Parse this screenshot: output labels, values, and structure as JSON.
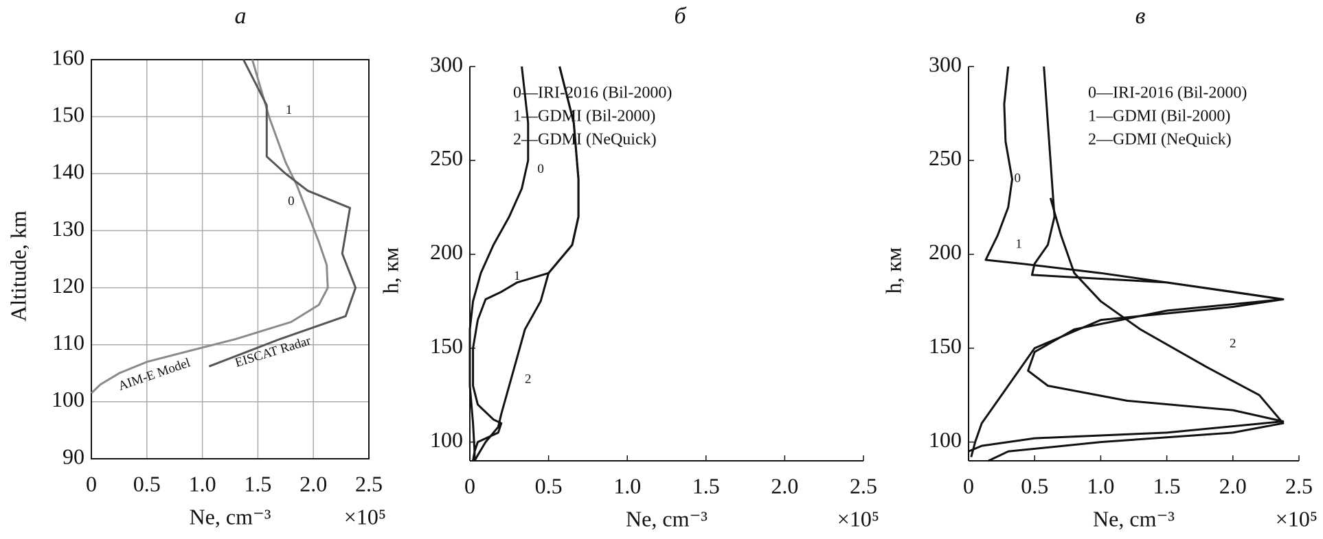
{
  "chart_data": [
    {
      "type": "line",
      "title": "а",
      "xlabel": "Ne, cm⁻³",
      "xunit": "×10⁵",
      "ylabel": "Altitude, km",
      "xlim": [
        0,
        2.5
      ],
      "ylim": [
        90,
        160
      ],
      "xticks": [
        0,
        0.5,
        {
          "value": 1,
          "label": "1.0"
        },
        1.5,
        {
          "value": 2,
          "label": "2.0"
        },
        2.5
      ],
      "yticks": [
        90,
        100,
        110,
        120,
        130,
        140,
        150,
        160
      ],
      "grid": true,
      "box": true,
      "legend": "on-curve",
      "series": [
        {
          "name": "AIM-E Model",
          "color": "#8a8a8a",
          "values": [
            1.45,
            1.6,
            1.75,
            1.85,
            1.95,
            2.05,
            2.12,
            2.13,
            2.05,
            1.8,
            1.3,
            0.9,
            0.5,
            0.25,
            0.08,
            0
          ],
          "h": [
            160,
            150,
            142,
            138,
            133,
            128,
            124,
            120,
            117,
            114,
            111,
            109,
            107,
            105,
            103,
            101.5
          ]
        },
        {
          "name": "EISCAT Radar",
          "color": "#555555",
          "values": [
            1.37,
            1.58,
            1.58,
            1.75,
            1.95,
            2.33,
            2.26,
            2.38,
            2.29,
            1.7,
            1.06
          ],
          "h": [
            160,
            152,
            143,
            140,
            137,
            134,
            126,
            120,
            115,
            111,
            106.2
          ]
        }
      ],
      "annotations": [
        "1",
        "0"
      ]
    },
    {
      "type": "line",
      "title": "б",
      "xlabel": "Ne, cm⁻³",
      "xunit": "×10⁵",
      "ylabel": "h, км",
      "xlim": [
        0,
        2.5
      ],
      "ylim": [
        90,
        300
      ],
      "xticks": [
        0,
        0.5,
        {
          "value": 1,
          "label": "1.0"
        },
        1.5,
        {
          "value": 2,
          "label": "2.0"
        },
        2.5
      ],
      "yticks": [
        100,
        150,
        200,
        250,
        300
      ],
      "grid": false,
      "box": false,
      "legend": "upper-right",
      "series": [
        {
          "name": "0—IRI-2016 (Bil-2000)",
          "color": "#111111",
          "values": [
            0.33,
            0.37,
            0.37,
            0.33,
            0.25,
            0.15,
            0.07,
            0.02,
            0,
            0,
            0.02,
            0.03,
            0.03
          ],
          "h": [
            300,
            270,
            250,
            235,
            220,
            205,
            190,
            175,
            160,
            130,
            110,
            95,
            90
          ]
        },
        {
          "name": "1—GDMI (Bil-2000)",
          "color": "#111111",
          "values": [
            0.57,
            0.66,
            0.69,
            0.69,
            0.65,
            0.5,
            0.3,
            0.2,
            0.1,
            0.05,
            0.02,
            0.02,
            0.05,
            0.15,
            0.2,
            0.18,
            0.05,
            0.03,
            0.02
          ],
          "h": [
            300,
            270,
            240,
            220,
            205,
            190,
            185,
            180,
            176,
            165,
            150,
            130,
            120,
            112,
            110,
            105,
            100,
            95,
            90
          ]
        },
        {
          "name": "2—GDMI (NeQuick)",
          "color": "#111111",
          "values": [
            0.57,
            0.66,
            0.69,
            0.69,
            0.65,
            0.5,
            0.45,
            0.35,
            0.3,
            0.25,
            0.2,
            0.18,
            0.1,
            0.05,
            0.03
          ],
          "h": [
            300,
            270,
            240,
            220,
            205,
            190,
            175,
            160,
            145,
            130,
            115,
            108,
            100,
            93,
            90
          ]
        }
      ],
      "annotations": [
        "0",
        "1",
        "2"
      ]
    },
    {
      "type": "line",
      "title": "в",
      "xlabel": "Ne, cm⁻³",
      "xunit": "×10⁵",
      "ylabel": "h, км",
      "xlim": [
        0,
        2.5
      ],
      "ylim": [
        90,
        300
      ],
      "xticks": [
        0,
        0.5,
        {
          "value": 1,
          "label": "1.0"
        },
        1.5,
        {
          "value": 2,
          "label": "2.0"
        },
        2.5
      ],
      "yticks": [
        100,
        150,
        200,
        250,
        300
      ],
      "grid": false,
      "box": false,
      "legend": "upper-right",
      "series": [
        {
          "name": "0—IRI-2016 (Bil-2000)",
          "color": "#111111",
          "values": [
            0.3,
            0.27,
            0.28,
            0.33,
            0.3,
            0.22,
            0.15,
            0.13,
            0.4,
            1.0,
            2.0,
            2.38,
            2.0,
            1.0,
            0.5,
            0.3,
            0.1,
            0.05,
            0.02
          ],
          "h": [
            300,
            280,
            260,
            240,
            225,
            210,
            200,
            197,
            195,
            190,
            180,
            176,
            172,
            165,
            150,
            130,
            110,
            100,
            92
          ]
        },
        {
          "name": "1—GDMI (Bil-2000)",
          "color": "#111111",
          "values": [
            0.57,
            0.6,
            0.63,
            0.65,
            0.6,
            0.5,
            0.48,
            1.5,
            2.38,
            1.5,
            0.8,
            0.5,
            0.45,
            0.6,
            1.2,
            2.0,
            2.38,
            1.5,
            0.5,
            0.1,
            0
          ],
          "h": [
            300,
            270,
            240,
            220,
            205,
            195,
            189,
            185,
            176,
            170,
            160,
            148,
            138,
            130,
            122,
            117,
            111,
            105,
            102,
            98,
            95
          ]
        },
        {
          "name": "2—GDMI (NeQuick)",
          "color": "#111111",
          "values": [
            0.62,
            0.7,
            0.8,
            1.0,
            1.3,
            1.8,
            2.2,
            2.38,
            2.0,
            1.0,
            0.3,
            0.15
          ],
          "h": [
            230,
            210,
            190,
            175,
            160,
            140,
            125,
            110,
            105,
            100,
            95,
            90
          ]
        }
      ],
      "annotations": [
        "0",
        "1",
        "2"
      ]
    }
  ]
}
